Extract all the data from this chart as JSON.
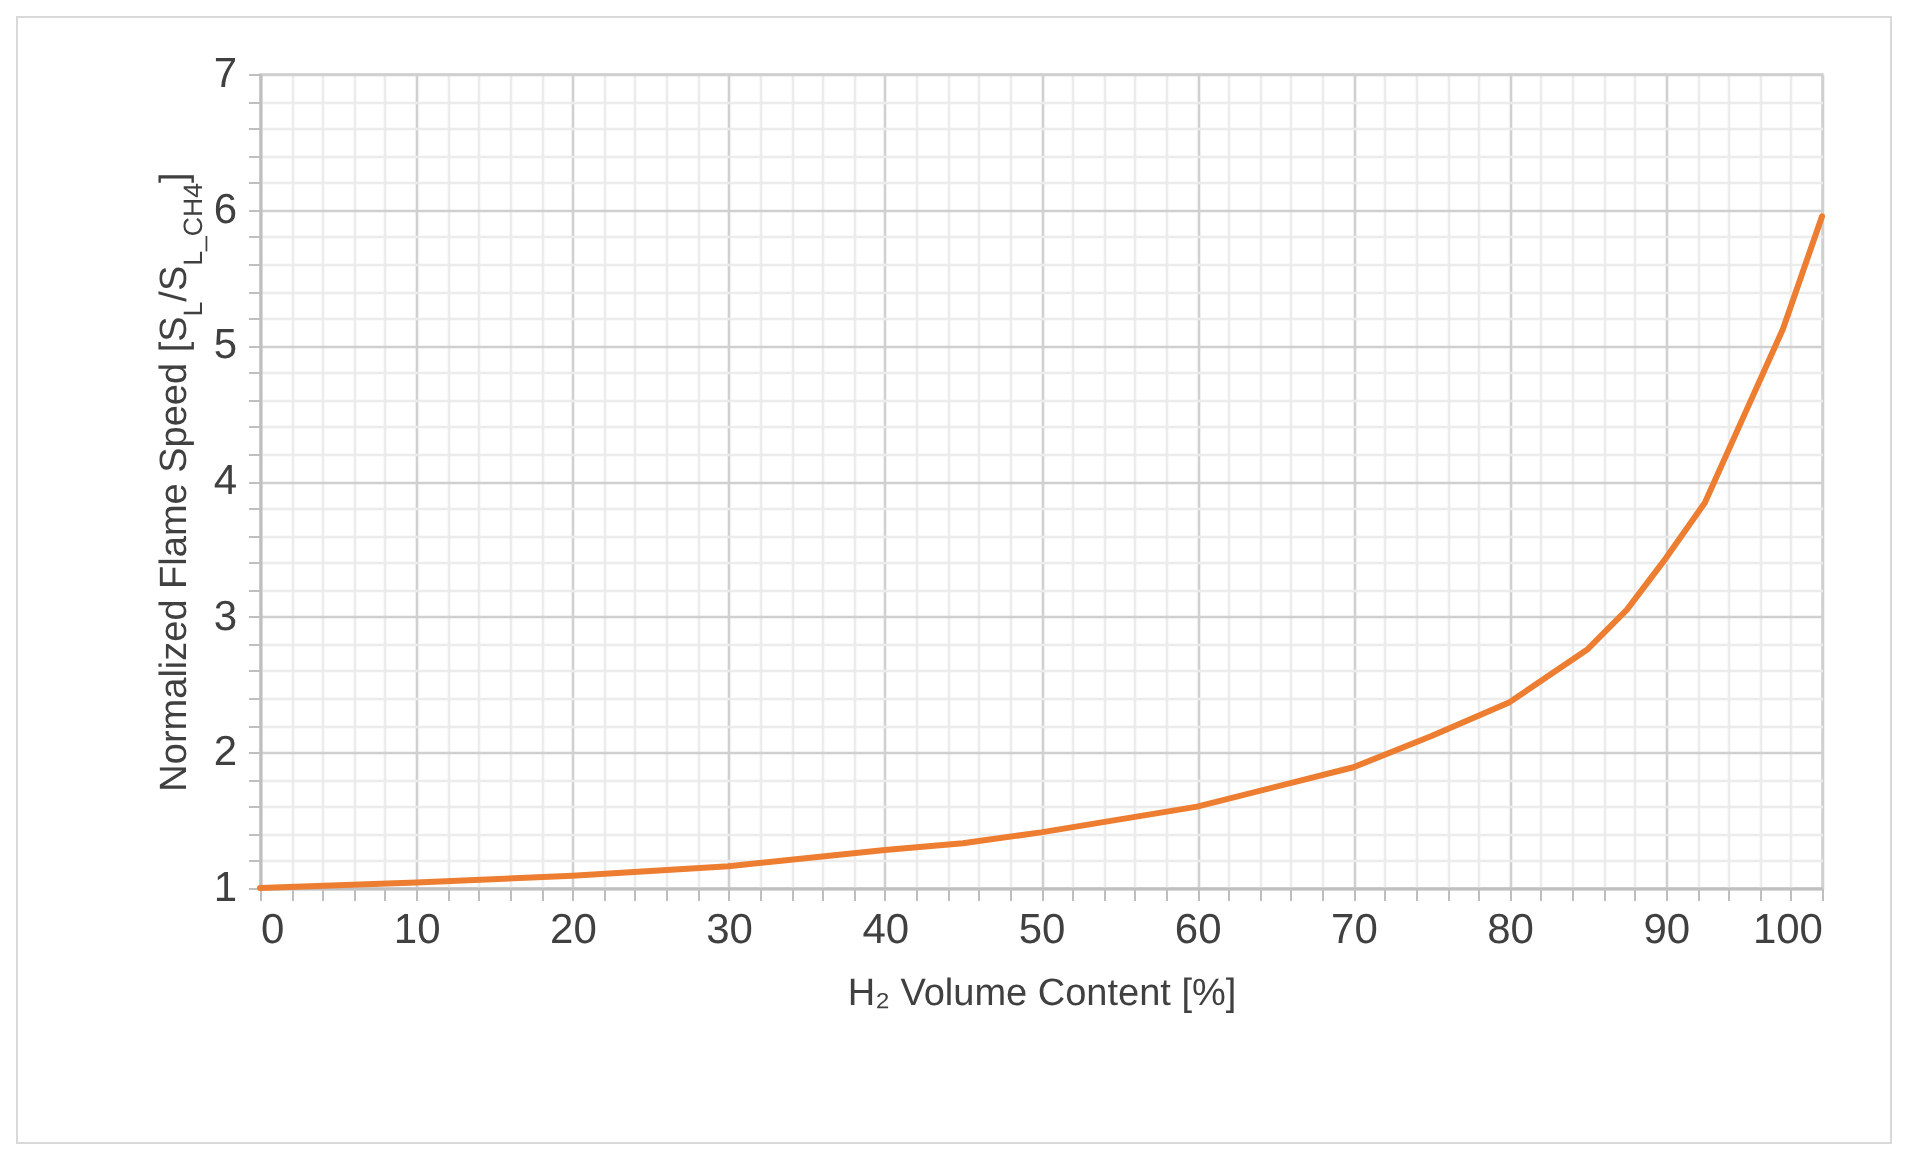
{
  "chart_data": {
    "type": "line",
    "xlabel": "H₂ Volume Content [%]",
    "ylabel": "Normalized Flame Speed [S$_{L}$/S$_{L_CH4}$]",
    "x": [
      0,
      10,
      20,
      30,
      40,
      45,
      50,
      60,
      70,
      75,
      80,
      85,
      87.5,
      90,
      92.5,
      95,
      97.5,
      100
    ],
    "series": [
      {
        "color": "#ed7d31",
        "values": [
          1.0,
          1.04,
          1.09,
          1.16,
          1.28,
          1.33,
          1.41,
          1.6,
          1.89,
          2.12,
          2.37,
          2.76,
          3.05,
          3.43,
          3.84,
          4.48,
          5.12,
          5.95
        ]
      }
    ],
    "xlim": [
      0,
      100
    ],
    "ylim": [
      1,
      7
    ],
    "xticks": [
      0,
      {
        "value": 2,
        "label": null
      },
      {
        "value": 4,
        "label": null
      },
      {
        "value": 6,
        "label": null
      },
      {
        "value": 8,
        "label": null
      },
      10,
      {
        "value": 12,
        "label": null
      },
      {
        "value": 14,
        "label": null
      },
      {
        "value": 16,
        "label": null
      },
      {
        "value": 18,
        "label": null
      },
      20,
      {
        "value": 22,
        "label": null
      },
      {
        "value": 24,
        "label": null
      },
      {
        "value": 26,
        "label": null
      },
      {
        "value": 28,
        "label": null
      },
      30,
      {
        "value": 32,
        "label": null
      },
      {
        "value": 34,
        "label": null
      },
      {
        "value": 36,
        "label": null
      },
      {
        "value": 38,
        "label": null
      },
      40,
      {
        "value": 42,
        "label": null
      },
      {
        "value": 44,
        "label": null
      },
      {
        "value": 46,
        "label": null
      },
      {
        "value": 48,
        "label": null
      },
      50,
      {
        "value": 52,
        "label": null
      },
      {
        "value": 54,
        "label": null
      },
      {
        "value": 56,
        "label": null
      },
      {
        "value": 58,
        "label": null
      },
      60,
      {
        "value": 62,
        "label": null
      },
      {
        "value": 64,
        "label": null
      },
      {
        "value": 66,
        "label": null
      },
      {
        "value": 68,
        "label": null
      },
      70,
      {
        "value": 72,
        "label": null
      },
      {
        "value": 74,
        "label": null
      },
      {
        "value": 76,
        "label": null
      },
      {
        "value": 78,
        "label": null
      },
      80,
      {
        "value": 82,
        "label": null
      },
      {
        "value": 84,
        "label": null
      },
      {
        "value": 86,
        "label": null
      },
      {
        "value": 88,
        "label": null
      },
      90,
      {
        "value": 92,
        "label": null
      },
      {
        "value": 94,
        "label": null
      },
      {
        "value": 96,
        "label": null
      },
      {
        "value": 98,
        "label": null
      },
      100
    ],
    "yticks": [
      1,
      {
        "value": 1.2,
        "label": null
      },
      {
        "value": 1.4,
        "label": null
      },
      {
        "value": 1.6,
        "label": null
      },
      {
        "value": 1.8,
        "label": null
      },
      2,
      {
        "value": 2.2,
        "label": null
      },
      {
        "value": 2.4,
        "label": null
      },
      {
        "value": 2.6,
        "label": null
      },
      {
        "value": 2.8,
        "label": null
      },
      3,
      {
        "value": 3.2,
        "label": null
      },
      {
        "value": 3.4,
        "label": null
      },
      {
        "value": 3.6,
        "label": null
      },
      {
        "value": 3.8,
        "label": null
      },
      4,
      {
        "value": 4.2,
        "label": null
      },
      {
        "value": 4.4,
        "label": null
      },
      {
        "value": 4.6,
        "label": null
      },
      {
        "value": 4.8,
        "label": null
      },
      5,
      {
        "value": 5.2,
        "label": null
      },
      {
        "value": 5.4,
        "label": null
      },
      {
        "value": 5.6,
        "label": null
      },
      {
        "value": 5.8,
        "label": null
      },
      6,
      {
        "value": 6.2,
        "label": null
      },
      {
        "value": 6.4,
        "label": null
      },
      {
        "value": 6.6,
        "label": null
      },
      {
        "value": 6.8,
        "label": null
      },
      7
    ],
    "grid": true,
    "marker": "none",
    "line_style": "solid"
  }
}
